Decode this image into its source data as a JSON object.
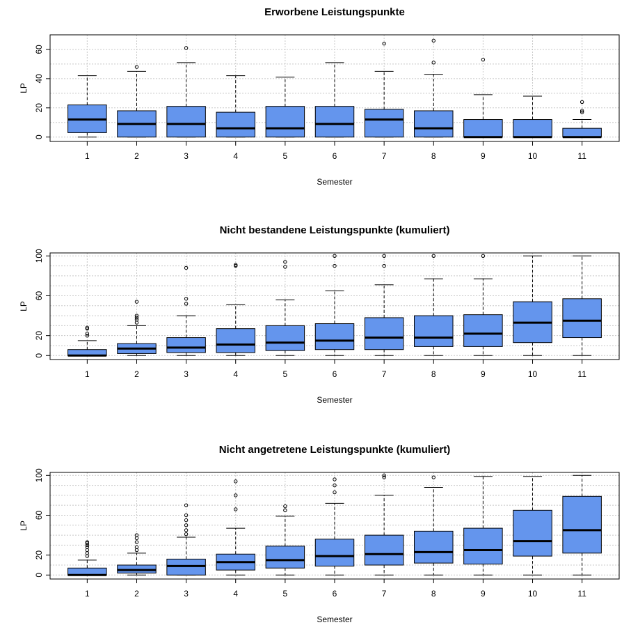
{
  "chart_data": [
    {
      "type": "boxplot",
      "title": "Erworbene Leistungspunkte",
      "xlabel": "Semester",
      "ylabel": "LP",
      "categories": [
        "1",
        "2",
        "3",
        "4",
        "5",
        "6",
        "7",
        "8",
        "9",
        "10",
        "11"
      ],
      "yticks": [
        0,
        20,
        40,
        60
      ],
      "ylim": [
        -3,
        70
      ],
      "box_color": "#6495ED",
      "boxes": [
        {
          "whisker_low": 0,
          "q1": 3,
          "median": 12,
          "q3": 22,
          "whisker_high": 42,
          "outliers": []
        },
        {
          "whisker_low": 0,
          "q1": 0,
          "median": 9,
          "q3": 18,
          "whisker_high": 45,
          "outliers": [
            48
          ]
        },
        {
          "whisker_low": 0,
          "q1": 0,
          "median": 9,
          "q3": 21,
          "whisker_high": 51,
          "outliers": [
            61
          ]
        },
        {
          "whisker_low": 0,
          "q1": 0,
          "median": 6,
          "q3": 17,
          "whisker_high": 42,
          "outliers": []
        },
        {
          "whisker_low": 0,
          "q1": 0,
          "median": 6,
          "q3": 21,
          "whisker_high": 41,
          "outliers": []
        },
        {
          "whisker_low": 0,
          "q1": 0,
          "median": 9,
          "q3": 21,
          "whisker_high": 51,
          "outliers": []
        },
        {
          "whisker_low": 0,
          "q1": 0,
          "median": 12,
          "q3": 19,
          "whisker_high": 45,
          "outliers": [
            64
          ]
        },
        {
          "whisker_low": 0,
          "q1": 0,
          "median": 6,
          "q3": 18,
          "whisker_high": 43,
          "outliers": [
            51,
            66
          ]
        },
        {
          "whisker_low": 0,
          "q1": 0,
          "median": 0,
          "q3": 12,
          "whisker_high": 29,
          "outliers": [
            53
          ]
        },
        {
          "whisker_low": 0,
          "q1": 0,
          "median": 0,
          "q3": 12,
          "whisker_high": 28,
          "outliers": []
        },
        {
          "whisker_low": 0,
          "q1": 0,
          "median": 0,
          "q3": 6,
          "whisker_high": 12,
          "outliers": [
            17,
            18,
            24
          ]
        }
      ]
    },
    {
      "type": "boxplot",
      "title": "Nicht bestandene Leistungspunkte (kumuliert)",
      "xlabel": "Semester",
      "ylabel": "LP",
      "categories": [
        "1",
        "2",
        "3",
        "4",
        "5",
        "6",
        "7",
        "8",
        "9",
        "10",
        "11"
      ],
      "yticks": [
        0,
        20,
        60,
        100
      ],
      "ylim": [
        -4,
        103
      ],
      "box_color": "#6495ED",
      "boxes": [
        {
          "whisker_low": 0,
          "q1": 0,
          "median": 0,
          "q3": 6,
          "whisker_high": 15,
          "outliers": [
            20,
            22,
            27,
            28
          ]
        },
        {
          "whisker_low": 0,
          "q1": 2,
          "median": 7,
          "q3": 12,
          "whisker_high": 30,
          "outliers": [
            33,
            36,
            38,
            40,
            54
          ]
        },
        {
          "whisker_low": 0,
          "q1": 3,
          "median": 8,
          "q3": 18,
          "whisker_high": 40,
          "outliers": [
            52,
            57,
            88
          ]
        },
        {
          "whisker_low": 0,
          "q1": 3,
          "median": 11,
          "q3": 27,
          "whisker_high": 51,
          "outliers": [
            90,
            91
          ]
        },
        {
          "whisker_low": 0,
          "q1": 5,
          "median": 13,
          "q3": 30,
          "whisker_high": 56,
          "outliers": [
            89,
            94
          ]
        },
        {
          "whisker_low": 0,
          "q1": 6,
          "median": 15,
          "q3": 32,
          "whisker_high": 65,
          "outliers": [
            90,
            100
          ]
        },
        {
          "whisker_low": 0,
          "q1": 6,
          "median": 18,
          "q3": 38,
          "whisker_high": 71,
          "outliers": [
            90,
            100
          ]
        },
        {
          "whisker_low": 0,
          "q1": 9,
          "median": 18,
          "q3": 40,
          "whisker_high": 77,
          "outliers": [
            100
          ]
        },
        {
          "whisker_low": 0,
          "q1": 9,
          "median": 22,
          "q3": 41,
          "whisker_high": 77,
          "outliers": [
            100
          ]
        },
        {
          "whisker_low": 0,
          "q1": 13,
          "median": 33,
          "q3": 54,
          "whisker_high": 100,
          "outliers": []
        },
        {
          "whisker_low": 0,
          "q1": 18,
          "median": 35,
          "q3": 57,
          "whisker_high": 100,
          "outliers": []
        }
      ]
    },
    {
      "type": "boxplot",
      "title": "Nicht angetretene Leistungspunkte (kumuliert)",
      "xlabel": "Semester",
      "ylabel": "LP",
      "categories": [
        "1",
        "2",
        "3",
        "4",
        "5",
        "6",
        "7",
        "8",
        "9",
        "10",
        "11"
      ],
      "yticks": [
        0,
        20,
        60,
        100
      ],
      "ylim": [
        -4,
        103
      ],
      "box_color": "#6495ED",
      "boxes": [
        {
          "whisker_low": 0,
          "q1": 0,
          "median": 0,
          "q3": 7,
          "whisker_high": 15,
          "outliers": [
            19,
            22,
            25,
            28,
            30,
            32,
            33
          ]
        },
        {
          "whisker_low": 0,
          "q1": 2,
          "median": 5,
          "q3": 10,
          "whisker_high": 22,
          "outliers": [
            25,
            28,
            33,
            37,
            40
          ]
        },
        {
          "whisker_low": 0,
          "q1": 0,
          "median": 9,
          "q3": 16,
          "whisker_high": 38,
          "outliers": [
            41,
            45,
            50,
            55,
            60,
            70
          ]
        },
        {
          "whisker_low": 0,
          "q1": 5,
          "median": 13,
          "q3": 21,
          "whisker_high": 47,
          "outliers": [
            66,
            80,
            94
          ]
        },
        {
          "whisker_low": 0,
          "q1": 7,
          "median": 15,
          "q3": 29,
          "whisker_high": 59,
          "outliers": [
            65,
            69
          ]
        },
        {
          "whisker_low": 0,
          "q1": 9,
          "median": 19,
          "q3": 36,
          "whisker_high": 72,
          "outliers": [
            83,
            90,
            96
          ]
        },
        {
          "whisker_low": 0,
          "q1": 10,
          "median": 21,
          "q3": 40,
          "whisker_high": 80,
          "outliers": [
            98,
            100
          ]
        },
        {
          "whisker_low": 0,
          "q1": 12,
          "median": 23,
          "q3": 44,
          "whisker_high": 88,
          "outliers": [
            98
          ]
        },
        {
          "whisker_low": 0,
          "q1": 11,
          "median": 25,
          "q3": 47,
          "whisker_high": 99,
          "outliers": []
        },
        {
          "whisker_low": 0,
          "q1": 19,
          "median": 34,
          "q3": 65,
          "whisker_high": 99,
          "outliers": []
        },
        {
          "whisker_low": 0,
          "q1": 22,
          "median": 45,
          "q3": 79,
          "whisker_high": 100,
          "outliers": []
        }
      ]
    }
  ]
}
